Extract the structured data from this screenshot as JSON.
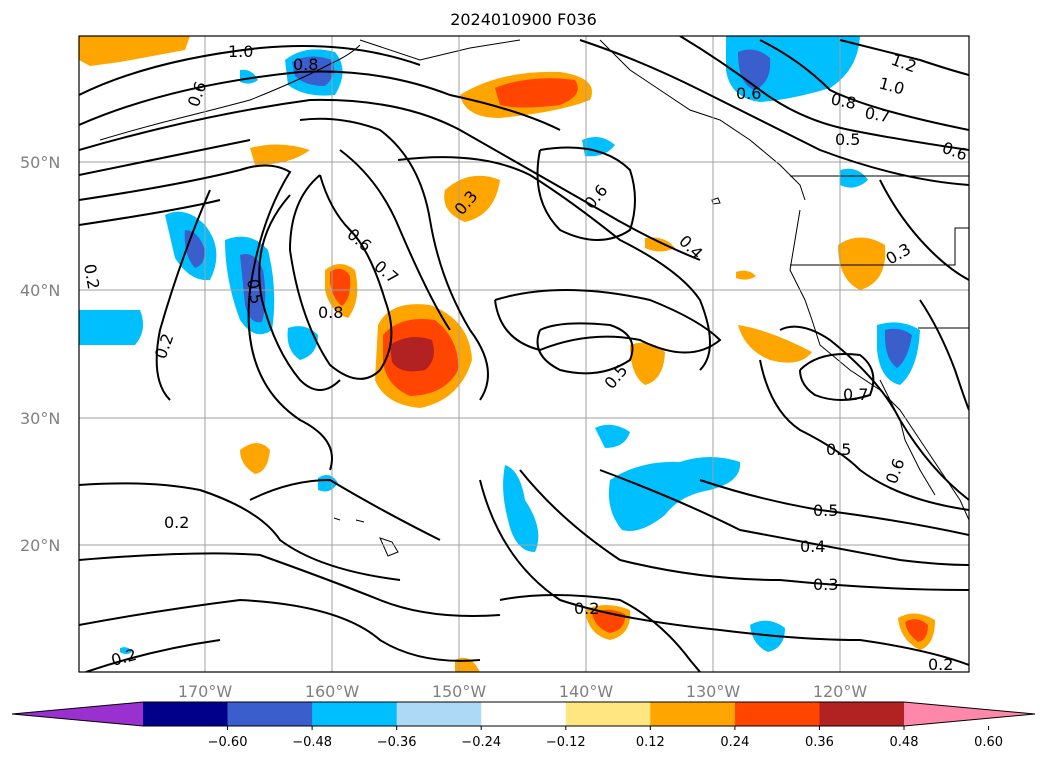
{
  "title": "2024010900 F036",
  "lat_labels": [
    "50°N",
    "40°N",
    "30°N",
    "20°N"
  ],
  "lon_labels": [
    "170°W",
    "160°W",
    "150°W",
    "140°W",
    "130°W",
    "120°W"
  ],
  "colorbar": {
    "ticks": [
      "−0.60",
      "−0.48",
      "−0.36",
      "−0.24",
      "−0.12",
      "0.12",
      "0.24",
      "0.36",
      "0.48",
      "0.60"
    ],
    "colors": [
      "#9b30d0",
      "#00008b",
      "#3a5fcd",
      "#00bfff",
      "#add8f6",
      "#ffffff",
      "#ffe680",
      "#ffa500",
      "#ff4500",
      "#b22222",
      "#ff88aa"
    ]
  },
  "contour_labels": {
    "c1": "1.0",
    "c2": "0.8",
    "c3": "0.6",
    "c4": "0.6",
    "c5": "1.2",
    "c6": "1.0",
    "c7": "0.8",
    "c8": "0.7",
    "c9": "0.5",
    "c10": "0.6",
    "c11": "0.3",
    "c12": "0.6",
    "c13": "0.4",
    "c14": "0.6",
    "c15": "0.7",
    "c16": "0.8",
    "c17": "0.5",
    "c18": "0.2",
    "c19": "0.2",
    "c20": "0.3",
    "c21": "0.7",
    "c22": "0.5",
    "c23": "0.6",
    "c24": "0.5",
    "c25": "0.4",
    "c26": "0.3",
    "c27": "0.2",
    "c28": "0.2",
    "c29": "0.2",
    "c30": "0.2",
    "c31": "0.5"
  }
}
